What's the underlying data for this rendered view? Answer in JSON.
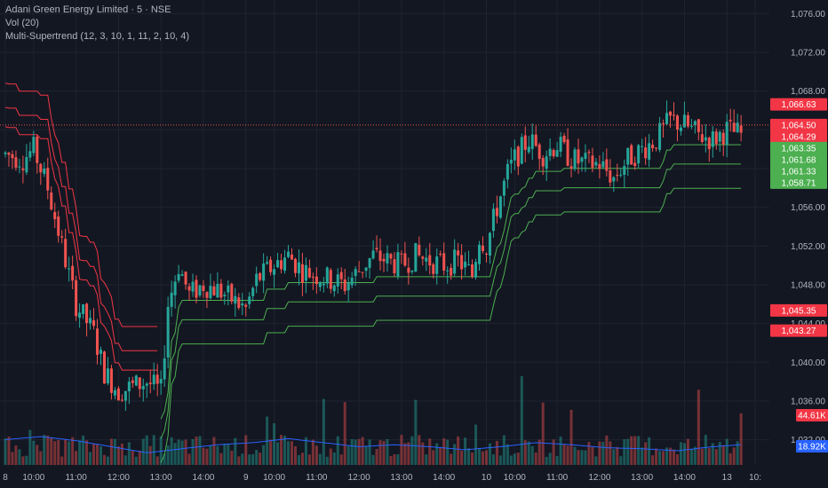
{
  "legend": {
    "title": "Adani Green Energy Limited · 5 · NSE",
    "volume": "Vol (20)",
    "indicator": "Multi-Supertrend (12, 3, 10, 1, 11, 2, 10, 4)"
  },
  "colors": {
    "background": "#131722",
    "grid": "#1f2330",
    "up": "#26a69a",
    "down": "#ef5350",
    "st_up": "#4caf50",
    "st_down": "#f23645",
    "vol_ma": "#2962ff",
    "price_line": "#ef5350"
  },
  "chart_data": {
    "type": "candlestick",
    "y_ticks": [
      "1,076.00",
      "1,072.00",
      "1,068.00",
      "1,064.00",
      "1,060.00",
      "1,056.00",
      "1,052.00",
      "1,048.00",
      "1,044.00",
      "1,040.00",
      "1,036.00",
      "1,032.00"
    ],
    "y_tick_values": [
      1076,
      1072,
      1068,
      1064,
      1060,
      1056,
      1052,
      1048,
      1044,
      1040,
      1036,
      1032
    ],
    "ylim": [
      1029.4,
      1077.4
    ],
    "x_ticks": [
      "8",
      "10:00",
      "11:00",
      "12:00",
      "13:00",
      "14:00",
      "9",
      "10:00",
      "11:00",
      "12:00",
      "13:00",
      "14:00",
      "10",
      "10:00",
      "11:00",
      "12:00",
      "13:00",
      "14:00",
      "13",
      "10:"
    ],
    "x_tick_bars": [
      0,
      8,
      20,
      32,
      44,
      56,
      68,
      76,
      88,
      100,
      112,
      124,
      136,
      144,
      156,
      168,
      180,
      192,
      204,
      212
    ],
    "price_tags": [
      {
        "label": "1,066.63",
        "value": 1066.63,
        "color": "#f23645"
      },
      {
        "label": "1,064.50",
        "value": 1064.5,
        "color": "#f23645"
      },
      {
        "label": "1,064.29",
        "value": 1064.29,
        "color": "#f23645"
      },
      {
        "label": "1,063.35",
        "value": 1063.35,
        "color": "#4caf50"
      },
      {
        "label": "1,061.68",
        "value": 1061.68,
        "color": "#4caf50"
      },
      {
        "label": "1,061.33",
        "value": 1061.33,
        "color": "#4caf50"
      },
      {
        "label": "1,058.71",
        "value": 1058.71,
        "color": "#4caf50"
      },
      {
        "label": "1,045.35",
        "value": 1045.35,
        "color": "#f23645"
      },
      {
        "label": "1,043.27",
        "value": 1043.27,
        "color": "#f23645"
      }
    ],
    "volume_tags": [
      {
        "label": "44.61K",
        "color": "#f23645"
      },
      {
        "label": "18.92K",
        "color": "#2962ff"
      }
    ],
    "last_price": 1064.5,
    "candles_ohlc_anchors": [
      [
        0,
        1061.5
      ],
      [
        5,
        1061.0
      ],
      [
        8,
        1062.0
      ],
      [
        12,
        1058.0
      ],
      [
        16,
        1052.0
      ],
      [
        20,
        1046.0
      ],
      [
        25,
        1043.0
      ],
      [
        28,
        1039.0
      ],
      [
        32,
        1037.0
      ],
      [
        36,
        1037.5
      ],
      [
        40,
        1038.0
      ],
      [
        44,
        1037.0
      ],
      [
        46,
        1046.0
      ],
      [
        49,
        1050.0
      ],
      [
        52,
        1047.0
      ],
      [
        56,
        1048.0
      ],
      [
        60,
        1047.5
      ],
      [
        64,
        1046.5
      ],
      [
        68,
        1045.5
      ],
      [
        71,
        1048.5
      ],
      [
        76,
        1050.0
      ],
      [
        80,
        1051.0
      ],
      [
        84,
        1049.5
      ],
      [
        88,
        1049.0
      ],
      [
        92,
        1048.5
      ],
      [
        96,
        1048.0
      ],
      [
        100,
        1049.5
      ],
      [
        104,
        1051.0
      ],
      [
        108,
        1050.5
      ],
      [
        112,
        1050.0
      ],
      [
        116,
        1051.0
      ],
      [
        120,
        1050.5
      ],
      [
        124,
        1050.0
      ],
      [
        128,
        1050.5
      ],
      [
        132,
        1049.0
      ],
      [
        134,
        1053.0
      ],
      [
        136,
        1052.0
      ],
      [
        139,
        1056.0
      ],
      [
        142,
        1059.5
      ],
      [
        144,
        1061.0
      ],
      [
        148,
        1063.0
      ],
      [
        152,
        1061.5
      ],
      [
        156,
        1062.5
      ],
      [
        160,
        1061.0
      ],
      [
        164,
        1060.5
      ],
      [
        168,
        1060.5
      ],
      [
        172,
        1059.0
      ],
      [
        176,
        1061.0
      ],
      [
        180,
        1062.0
      ],
      [
        184,
        1063.0
      ],
      [
        188,
        1065.0
      ],
      [
        192,
        1064.5
      ],
      [
        196,
        1063.5
      ],
      [
        200,
        1063.0
      ],
      [
        204,
        1064.0
      ],
      [
        208,
        1063.5
      ]
    ],
    "volume_ma_anchors": [
      [
        0,
        0.25
      ],
      [
        10,
        0.28
      ],
      [
        20,
        0.24
      ],
      [
        30,
        0.18
      ],
      [
        40,
        0.12
      ],
      [
        50,
        0.16
      ],
      [
        60,
        0.2
      ],
      [
        70,
        0.22
      ],
      [
        80,
        0.26
      ],
      [
        90,
        0.22
      ],
      [
        100,
        0.18
      ],
      [
        110,
        0.2
      ],
      [
        120,
        0.18
      ],
      [
        130,
        0.15
      ],
      [
        140,
        0.18
      ],
      [
        150,
        0.22
      ],
      [
        160,
        0.2
      ],
      [
        170,
        0.17
      ],
      [
        180,
        0.16
      ],
      [
        190,
        0.14
      ],
      [
        200,
        0.18
      ],
      [
        208,
        0.2
      ]
    ]
  }
}
